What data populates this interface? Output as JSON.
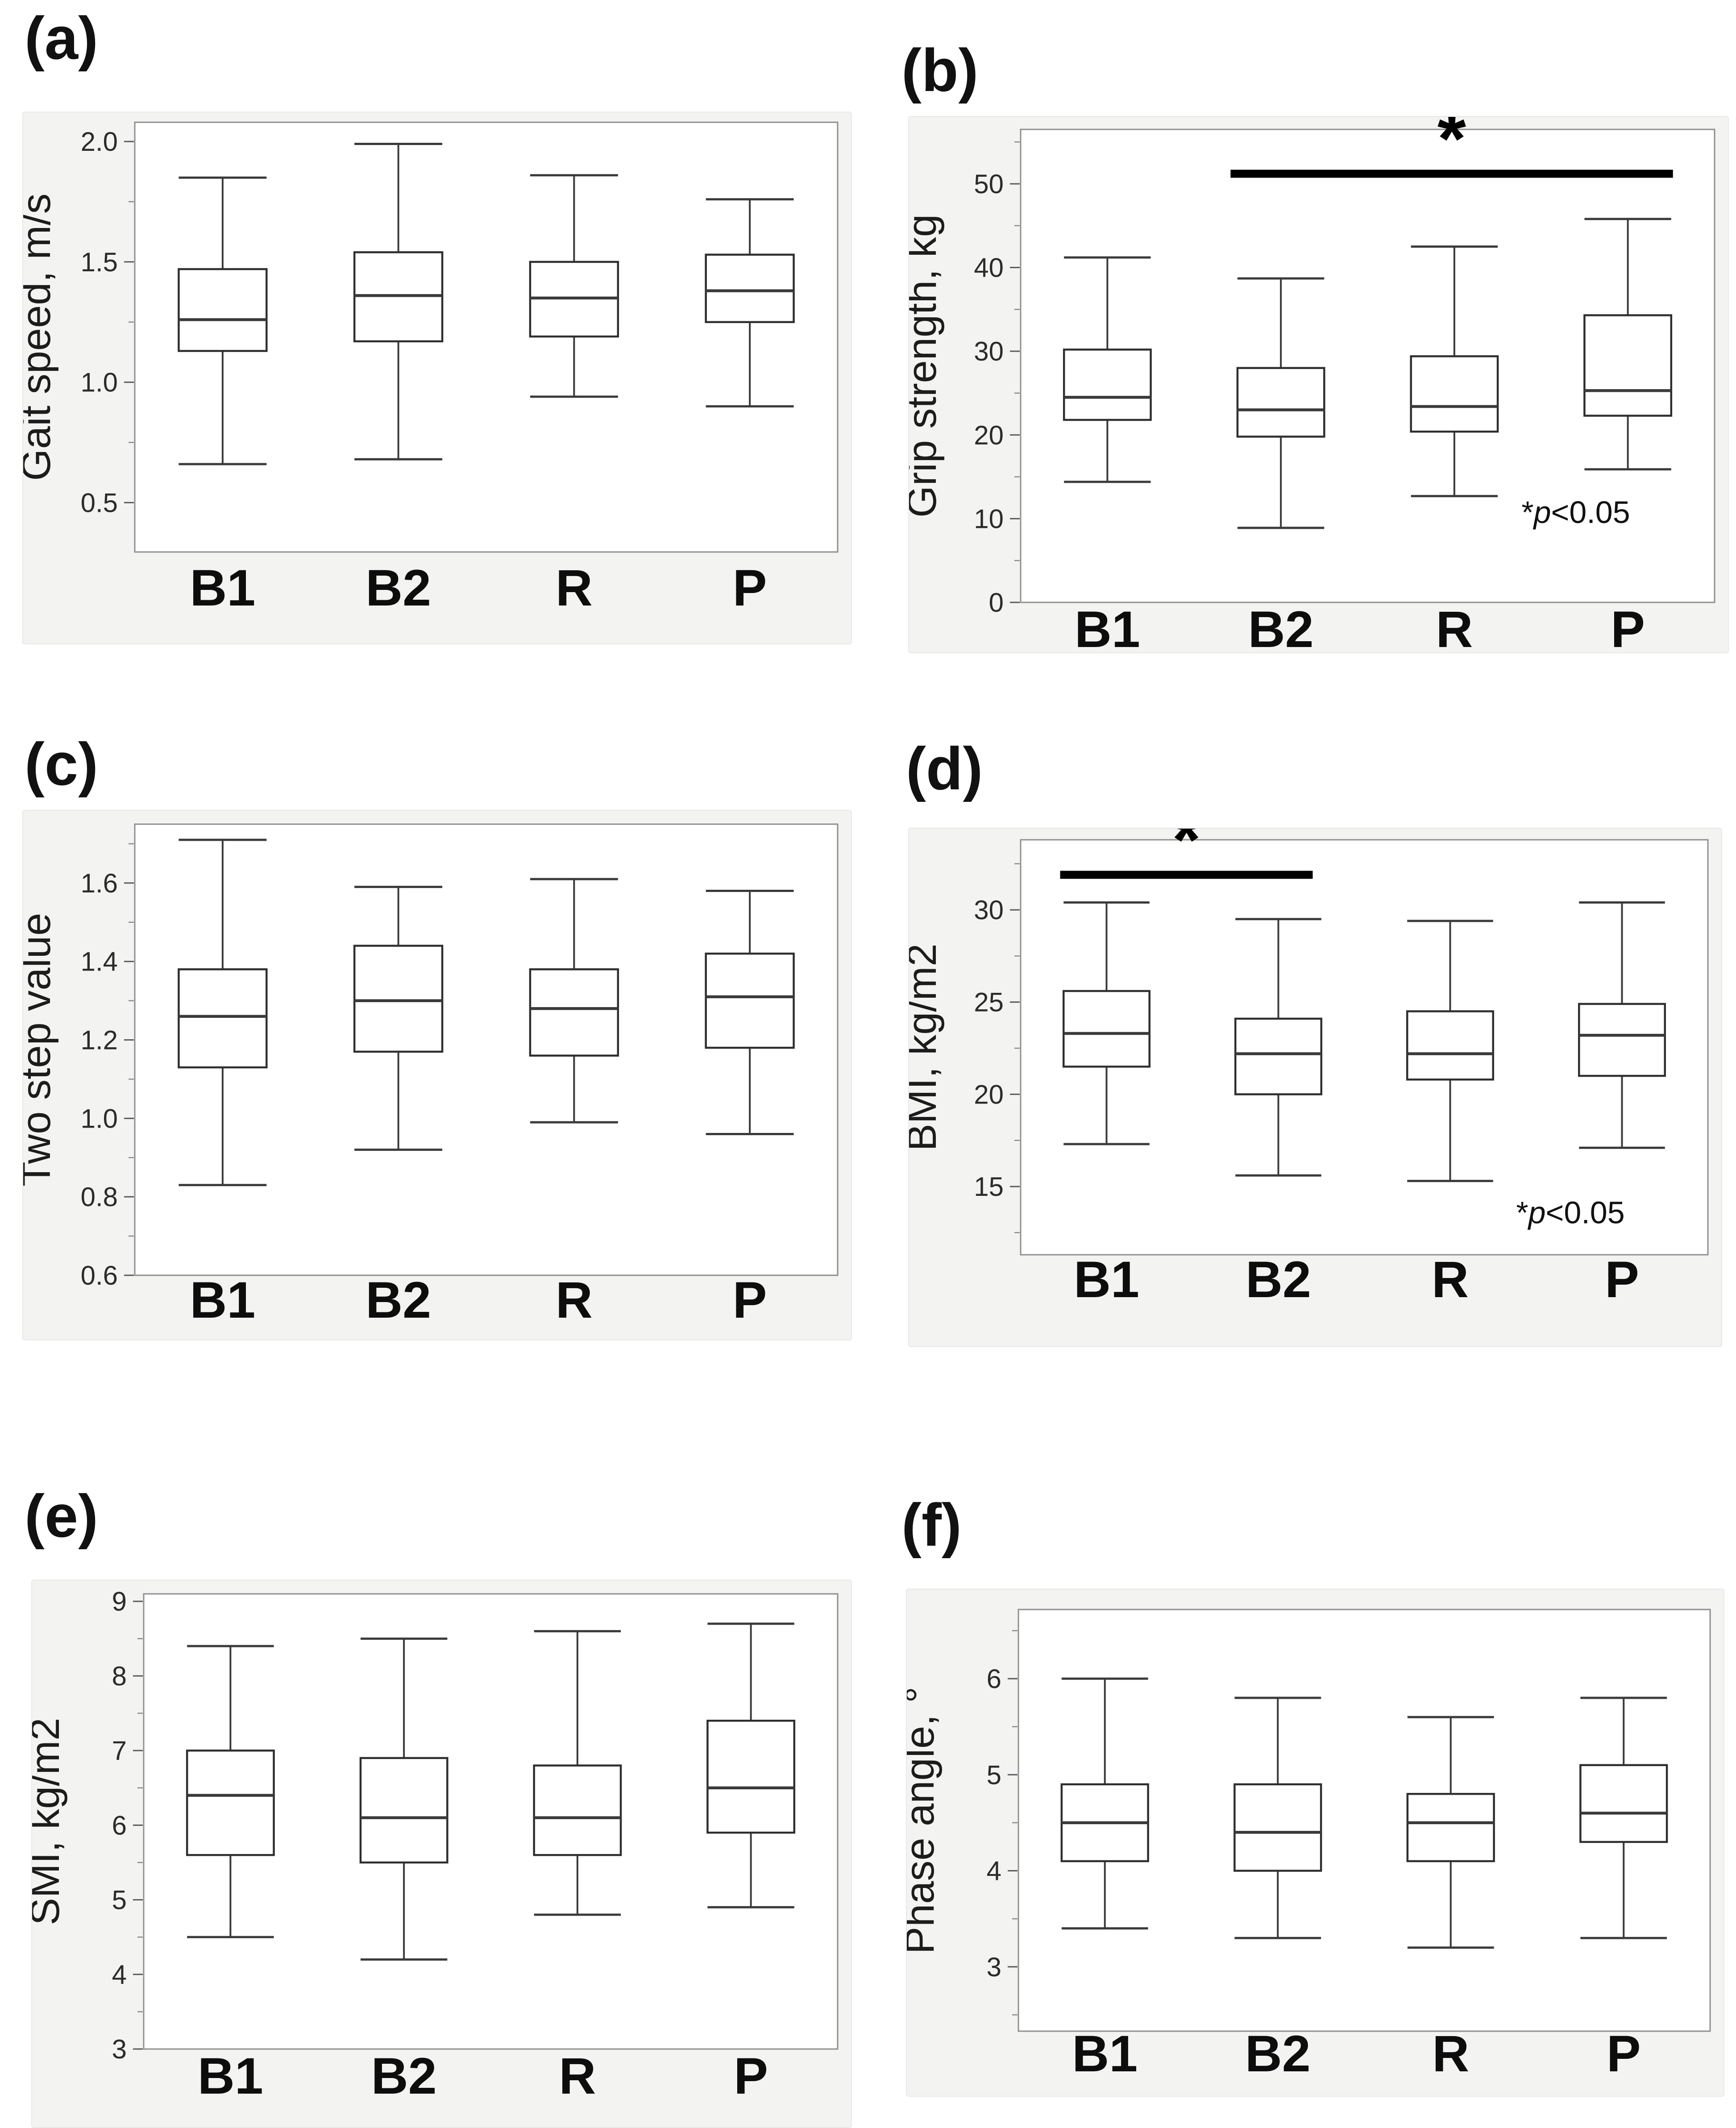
{
  "figure": {
    "background": "#ffffff",
    "frame_background": "#f3f3f2",
    "plot_background": "#ffffff",
    "line_color": "#2e2e2e",
    "significance_note": "*p<0.05"
  },
  "chart_data": [
    {
      "panel_label": "(a)",
      "type": "box",
      "ylabel": "Gait speed, m/s",
      "categories": [
        "B1",
        "B2",
        "R",
        "P"
      ],
      "ylim": [
        0.295,
        2.08
      ],
      "yticks_major": [
        0.5,
        1.0,
        1.5,
        2.0
      ],
      "ytick_labels": [
        "0.5",
        "1.0",
        "1.5",
        "2.0"
      ],
      "yticks_minor": [
        0.75,
        1.25,
        1.75
      ],
      "boxes": [
        {
          "category": "B1",
          "min": 0.66,
          "q1": 1.13,
          "median": 1.26,
          "q3": 1.47,
          "max": 1.85
        },
        {
          "category": "B2",
          "min": 0.68,
          "q1": 1.17,
          "median": 1.36,
          "q3": 1.54,
          "max": 1.99
        },
        {
          "category": "R",
          "min": 0.94,
          "q1": 1.19,
          "median": 1.35,
          "q3": 1.5,
          "max": 1.86
        },
        {
          "category": "P",
          "min": 0.9,
          "q1": 1.25,
          "median": 1.38,
          "q3": 1.53,
          "max": 1.76
        }
      ],
      "significance": null,
      "note": null
    },
    {
      "panel_label": "(b)",
      "type": "box",
      "ylabel": "Grip strength, kg",
      "categories": [
        "B1",
        "B2",
        "R",
        "P"
      ],
      "ylim": [
        0,
        56.5
      ],
      "yticks_major": [
        0,
        10,
        20,
        30,
        40,
        50
      ],
      "ytick_labels": [
        "0",
        "10",
        "20",
        "30",
        "40",
        "50"
      ],
      "yticks_minor": [
        5,
        15,
        25,
        35,
        45,
        55
      ],
      "boxes": [
        {
          "category": "B1",
          "min": 14.4,
          "q1": 21.8,
          "median": 24.5,
          "q3": 30.2,
          "max": 41.2
        },
        {
          "category": "B2",
          "min": 8.9,
          "q1": 19.8,
          "median": 23.0,
          "q3": 28.0,
          "max": 38.7
        },
        {
          "category": "R",
          "min": 12.7,
          "q1": 20.4,
          "median": 23.4,
          "q3": 29.4,
          "max": 42.5
        },
        {
          "category": "P",
          "min": 15.9,
          "q1": 22.3,
          "median": 25.3,
          "q3": 34.3,
          "max": 45.8
        }
      ],
      "significance": {
        "from": "B2",
        "to": "P",
        "bar_y": 51.2,
        "star": "*"
      },
      "note": {
        "parts": [
          "*",
          "p",
          "<0.05"
        ],
        "y_value": 9.5
      }
    },
    {
      "panel_label": "(c)",
      "type": "box",
      "ylabel": "Two step value",
      "categories": [
        "B1",
        "B2",
        "R",
        "P"
      ],
      "ylim": [
        0.6,
        1.75
      ],
      "yticks_major": [
        0.6,
        0.8,
        1.0,
        1.2,
        1.4,
        1.6
      ],
      "ytick_labels": [
        "0.6",
        "0.8",
        "1.0",
        "1.2",
        "1.4",
        "1.6"
      ],
      "yticks_minor": [
        0.7,
        0.9,
        1.1,
        1.3,
        1.5,
        1.7
      ],
      "boxes": [
        {
          "category": "B1",
          "min": 0.83,
          "q1": 1.13,
          "median": 1.26,
          "q3": 1.38,
          "max": 1.71
        },
        {
          "category": "B2",
          "min": 0.92,
          "q1": 1.17,
          "median": 1.3,
          "q3": 1.44,
          "max": 1.59
        },
        {
          "category": "R",
          "min": 0.99,
          "q1": 1.16,
          "median": 1.28,
          "q3": 1.38,
          "max": 1.61
        },
        {
          "category": "P",
          "min": 0.96,
          "q1": 1.18,
          "median": 1.31,
          "q3": 1.42,
          "max": 1.58
        }
      ],
      "significance": null,
      "note": null
    },
    {
      "panel_label": "(d)",
      "type": "box",
      "ylabel": "BMI, kg/m2",
      "categories": [
        "B1",
        "B2",
        "R",
        "P"
      ],
      "ylim": [
        11.3,
        33.8
      ],
      "yticks_major": [
        15,
        20,
        25,
        30
      ],
      "ytick_labels": [
        "15",
        "20",
        "25",
        "30"
      ],
      "yticks_minor": [
        12.5,
        17.5,
        22.5,
        27.5,
        32.5
      ],
      "boxes": [
        {
          "category": "B1",
          "min": 17.3,
          "q1": 21.5,
          "median": 23.3,
          "q3": 25.6,
          "max": 30.4
        },
        {
          "category": "B2",
          "min": 15.6,
          "q1": 20.0,
          "median": 22.2,
          "q3": 24.1,
          "max": 29.5
        },
        {
          "category": "R",
          "min": 15.3,
          "q1": 20.8,
          "median": 22.2,
          "q3": 24.5,
          "max": 29.4
        },
        {
          "category": "P",
          "min": 17.1,
          "q1": 21.0,
          "median": 23.2,
          "q3": 24.9,
          "max": 30.4
        }
      ],
      "significance": {
        "from": "B1",
        "to": "B2",
        "bar_y": 31.9,
        "star": "*"
      },
      "note": {
        "parts": [
          "*",
          "p",
          "<0.05"
        ],
        "y_value": 13.0
      }
    },
    {
      "panel_label": "(e)",
      "type": "box",
      "ylabel": "SMI, kg/m2",
      "categories": [
        "B1",
        "B2",
        "R",
        "P"
      ],
      "ylim": [
        3.0,
        9.1
      ],
      "yticks_major": [
        3,
        4,
        5,
        6,
        7,
        8,
        9
      ],
      "ytick_labels": [
        "3",
        "4",
        "5",
        "6",
        "7",
        "8",
        "9"
      ],
      "yticks_minor": [
        3.5,
        4.5,
        5.5,
        6.5,
        7.5,
        8.5
      ],
      "boxes": [
        {
          "category": "B1",
          "min": 4.5,
          "q1": 5.6,
          "median": 6.4,
          "q3": 7.0,
          "max": 8.4
        },
        {
          "category": "B2",
          "min": 4.2,
          "q1": 5.5,
          "median": 6.1,
          "q3": 6.9,
          "max": 8.5
        },
        {
          "category": "R",
          "min": 4.8,
          "q1": 5.6,
          "median": 6.1,
          "q3": 6.8,
          "max": 8.6
        },
        {
          "category": "P",
          "min": 4.9,
          "q1": 5.9,
          "median": 6.5,
          "q3": 7.4,
          "max": 8.7
        }
      ],
      "significance": null,
      "note": null
    },
    {
      "panel_label": "(f)",
      "type": "box",
      "ylabel": "Phase angle, °",
      "categories": [
        "B1",
        "B2",
        "R",
        "P"
      ],
      "ylim": [
        2.33,
        6.72
      ],
      "yticks_major": [
        3,
        4,
        5,
        6
      ],
      "ytick_labels": [
        "3",
        "4",
        "5",
        "6"
      ],
      "yticks_minor": [
        2.5,
        3.5,
        4.5,
        5.5,
        6.5
      ],
      "boxes": [
        {
          "category": "B1",
          "min": 3.4,
          "q1": 4.1,
          "median": 4.5,
          "q3": 4.9,
          "max": 6.0
        },
        {
          "category": "B2",
          "min": 3.3,
          "q1": 4.0,
          "median": 4.4,
          "q3": 4.9,
          "max": 5.8
        },
        {
          "category": "R",
          "min": 3.2,
          "q1": 4.1,
          "median": 4.5,
          "q3": 4.8,
          "max": 5.6
        },
        {
          "category": "P",
          "min": 3.3,
          "q1": 4.3,
          "median": 4.6,
          "q3": 5.1,
          "max": 5.8
        }
      ],
      "significance": null,
      "note": null
    }
  ]
}
